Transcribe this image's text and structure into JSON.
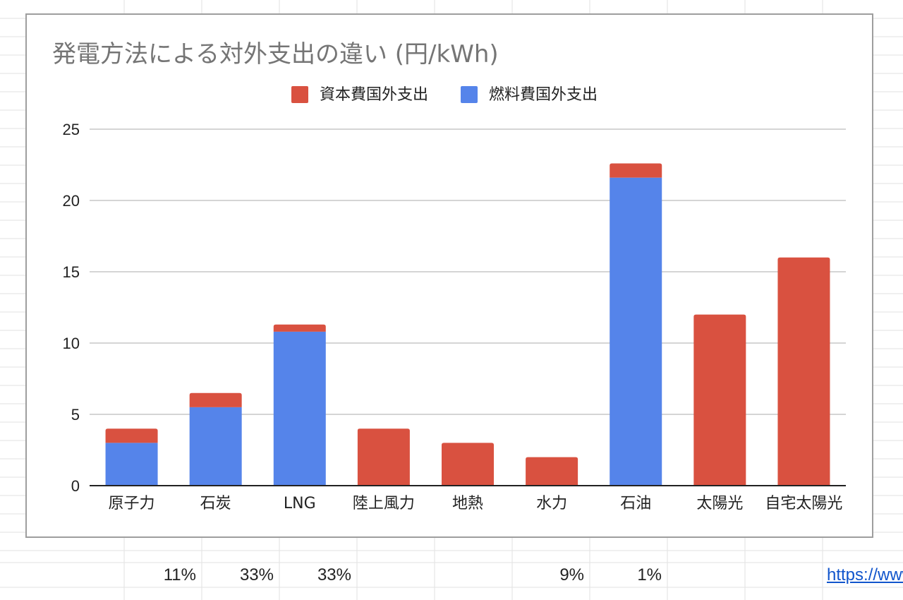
{
  "colors": {
    "capital": "#d95140",
    "fuel": "#5584ea",
    "gridline": "#c7c7c7",
    "axis": "#222222",
    "title": "#757575",
    "link": "#1155cc"
  },
  "chart_data": {
    "type": "bar",
    "stacked": true,
    "title": "発電方法による対外支出の違い (円/kWh)",
    "xlabel": "",
    "ylabel": "",
    "ylim": [
      0,
      25
    ],
    "yticks": [
      0,
      5,
      10,
      15,
      20,
      25
    ],
    "grid": true,
    "legend_position": "top",
    "categories": [
      "原子力",
      "石炭",
      "LNG",
      "陸上風力",
      "地熱",
      "水力",
      "石油",
      "太陽光",
      "自宅太陽光"
    ],
    "series": [
      {
        "name": "燃料費国外支出",
        "color": "#5584ea",
        "values": [
          3,
          5.5,
          10.8,
          0,
          0,
          0,
          21.6,
          0,
          0
        ]
      },
      {
        "name": "資本費国外支出",
        "color": "#d95140",
        "values": [
          1,
          1,
          0.5,
          4,
          3,
          2,
          1,
          12,
          16
        ]
      }
    ],
    "legend_order": [
      1,
      0
    ]
  },
  "cells": [
    {
      "col": 2,
      "value": "11%"
    },
    {
      "col": 3,
      "value": "33%"
    },
    {
      "col": 4,
      "value": "33%"
    },
    {
      "col": 7,
      "value": "9%"
    },
    {
      "col": 8,
      "value": "1%"
    }
  ],
  "link_cell": {
    "text": "https://www"
  }
}
